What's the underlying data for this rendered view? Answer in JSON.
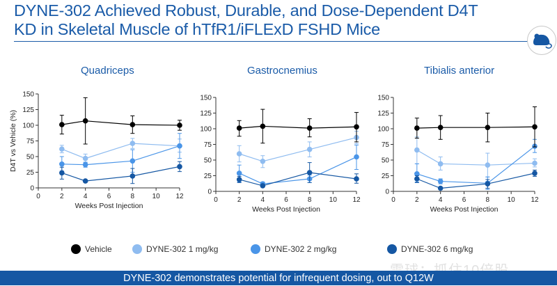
{
  "header": {
    "title_line1": "DYNE-302 Achieved Robust, Durable, and Dose-Dependent D4T",
    "title_line2": "KD in Skeletal Muscle of hTfR1/iFLExD FSHD Mice",
    "badge_icon": "mouse-icon"
  },
  "colors": {
    "brand": "#1a5ba8",
    "vehicle": "#000000",
    "dose_1": "#8fbcf0",
    "dose_2": "#4a95e8",
    "dose_6": "#1557a3",
    "footer": "#1557a3"
  },
  "legend": [
    {
      "label": "Vehicle",
      "color": "#000000"
    },
    {
      "label": "DYNE-302 1 mg/kg",
      "color": "#8fbcf0"
    },
    {
      "label": "DYNE-302 2 mg/kg",
      "color": "#4a95e8"
    },
    {
      "label": "DYNE-302 6 mg/kg",
      "color": "#1557a3"
    }
  ],
  "footer": {
    "text": "DYNE-302 demonstrates potential for infrequent dosing, out to Q12W"
  },
  "watermark": "雪球：抓住10倍股",
  "chart_data": [
    {
      "type": "line",
      "title": "Quadriceps",
      "xlabel": "Weeks Post Injection",
      "ylabel": "D4T  vs  Vehicle (%)",
      "xlim": [
        0,
        12
      ],
      "ylim": [
        0,
        150
      ],
      "xticks": [
        0,
        2,
        4,
        6,
        8,
        10,
        12
      ],
      "yticks": [
        0,
        25,
        50,
        75,
        100,
        125,
        150
      ],
      "x": [
        2,
        4,
        8,
        12
      ],
      "series": [
        {
          "name": "Vehicle",
          "color": "#000000",
          "values": [
            101,
            107,
            101,
            100
          ],
          "err_low": [
            86,
            70,
            87,
            92
          ],
          "err_high": [
            116,
            144,
            115,
            108
          ]
        },
        {
          "name": "DYNE-302 1 mg/kg",
          "color": "#8fbcf0",
          "values": [
            62,
            47,
            71,
            67
          ],
          "err_low": [
            56,
            40,
            63,
            57
          ],
          "err_high": [
            68,
            54,
            79,
            78
          ]
        },
        {
          "name": "DYNE-302 2 mg/kg",
          "color": "#4a95e8",
          "values": [
            38,
            37,
            43,
            67
          ],
          "err_low": [
            27,
            33,
            25,
            47
          ],
          "err_high": [
            50,
            41,
            61,
            87
          ]
        },
        {
          "name": "DYNE-302 6 mg/kg",
          "color": "#1557a3",
          "values": [
            24,
            11,
            19,
            34
          ],
          "err_low": [
            14,
            9,
            7,
            26
          ],
          "err_high": [
            33,
            13,
            31,
            42
          ]
        }
      ]
    },
    {
      "type": "line",
      "title": "Gastrocnemius",
      "xlabel": "Weeks Post Injection",
      "ylabel": "",
      "xlim": [
        0,
        12
      ],
      "ylim": [
        0,
        150
      ],
      "xticks": [
        0,
        2,
        4,
        6,
        8,
        10,
        12
      ],
      "yticks": [
        0,
        25,
        50,
        75,
        100,
        125,
        150
      ],
      "x": [
        2,
        4,
        8,
        12
      ],
      "series": [
        {
          "name": "Vehicle",
          "color": "#000000",
          "values": [
            101,
            104,
            101,
            103
          ],
          "err_low": [
            88,
            77,
            87,
            79
          ],
          "err_high": [
            113,
            131,
            116,
            126
          ]
        },
        {
          "name": "DYNE-302 1 mg/kg",
          "color": "#8fbcf0",
          "values": [
            60,
            48,
            67,
            86
          ],
          "err_low": [
            47,
            38,
            55,
            76
          ],
          "err_high": [
            73,
            57,
            79,
            96
          ]
        },
        {
          "name": "DYNE-302 2 mg/kg",
          "color": "#4a95e8",
          "values": [
            29,
            12,
            20,
            55
          ],
          "err_low": [
            15,
            9,
            14,
            35
          ],
          "err_high": [
            42,
            15,
            26,
            74
          ]
        },
        {
          "name": "DYNE-302 6 mg/kg",
          "color": "#1557a3",
          "values": [
            19,
            9,
            30,
            20
          ],
          "err_low": [
            14,
            8,
            14,
            13
          ],
          "err_high": [
            24,
            10,
            46,
            28
          ]
        }
      ]
    },
    {
      "type": "line",
      "title": "Tibialis anterior",
      "xlabel": "Weeks Post Injection",
      "ylabel": "",
      "xlim": [
        0,
        12
      ],
      "ylim": [
        0,
        150
      ],
      "xticks": [
        0,
        2,
        4,
        6,
        8,
        10,
        12
      ],
      "yticks": [
        0,
        25,
        50,
        75,
        100,
        125,
        150
      ],
      "x": [
        2,
        4,
        8,
        12
      ],
      "series": [
        {
          "name": "Vehicle",
          "color": "#000000",
          "values": [
            101,
            102,
            102,
            103
          ],
          "err_low": [
            85,
            83,
            79,
            71
          ],
          "err_high": [
            117,
            121,
            125,
            135
          ]
        },
        {
          "name": "DYNE-302 1 mg/kg",
          "color": "#8fbcf0",
          "values": [
            66,
            44,
            42,
            45
          ],
          "err_low": [
            44,
            34,
            23,
            39
          ],
          "err_high": [
            87,
            55,
            61,
            52
          ]
        },
        {
          "name": "DYNE-302 2 mg/kg",
          "color": "#4a95e8",
          "values": [
            28,
            16,
            13,
            72
          ],
          "err_low": [
            15,
            12,
            3,
            62
          ],
          "err_high": [
            44,
            20,
            23,
            83
          ]
        },
        {
          "name": "DYNE-302 6 mg/kg",
          "color": "#1557a3",
          "values": [
            20,
            5,
            12,
            29
          ],
          "err_low": [
            14,
            4,
            5,
            24
          ],
          "err_high": [
            25,
            6,
            19,
            34
          ]
        }
      ]
    }
  ]
}
